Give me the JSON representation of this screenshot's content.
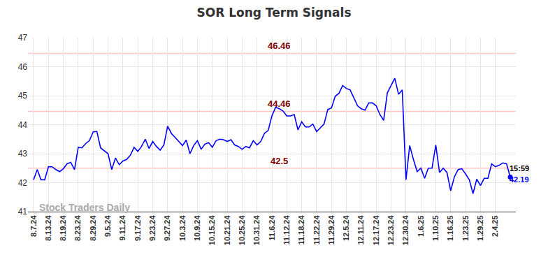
{
  "chart_data": {
    "type": "line",
    "title": "SOR Long Term Signals",
    "color": "#0000ff",
    "grid": true,
    "ylim": [
      41,
      47
    ],
    "yticks": [
      41,
      42,
      43,
      44,
      45,
      46,
      47
    ],
    "categories": [
      "8.7.24",
      null,
      null,
      null,
      "8.13.24",
      null,
      null,
      null,
      "8.19.24",
      null,
      null,
      null,
      "8.23.24",
      null,
      null,
      null,
      "8.29.24",
      null,
      null,
      null,
      "9.5.24",
      null,
      null,
      null,
      "9.11.24",
      null,
      null,
      null,
      "9.17.24",
      null,
      null,
      null,
      "9.23.24",
      null,
      null,
      null,
      "9.27.24",
      null,
      null,
      null,
      "10.3.24",
      null,
      null,
      null,
      "10.9.24",
      null,
      null,
      null,
      "10.15.24",
      null,
      null,
      null,
      "10.21.24",
      null,
      null,
      null,
      "10.25.24",
      null,
      null,
      null,
      "10.31.24",
      null,
      null,
      null,
      "11.6.24",
      null,
      null,
      null,
      "11.12.24",
      null,
      null,
      null,
      "11.18.24",
      null,
      null,
      null,
      "11.22.24",
      null,
      null,
      null,
      "11.29.24",
      null,
      null,
      null,
      "12.5.24",
      null,
      null,
      null,
      "12.11.24",
      null,
      null,
      null,
      "12.17.24",
      null,
      null,
      null,
      "12.23.24",
      null,
      null,
      null,
      "12.30.24",
      null,
      null,
      null,
      "1.6.25",
      null,
      null,
      null,
      "1.10.25",
      null,
      null,
      null,
      "1.16.25",
      null,
      null,
      null,
      "1.23.25",
      null,
      null,
      null,
      "1.29.25",
      null,
      null,
      null,
      "2.4.25",
      null,
      null,
      null,
      null
    ],
    "values": [
      42.1,
      42.45,
      42.1,
      42.1,
      42.55,
      42.55,
      42.45,
      42.38,
      42.48,
      42.65,
      42.7,
      42.45,
      43.22,
      43.2,
      43.35,
      43.45,
      43.75,
      43.77,
      43.2,
      43.1,
      43.0,
      42.45,
      42.85,
      42.62,
      42.75,
      42.8,
      42.95,
      43.22,
      43.08,
      43.25,
      43.5,
      43.18,
      43.42,
      43.25,
      43.12,
      43.3,
      43.95,
      43.7,
      43.55,
      43.42,
      43.28,
      43.47,
      43.0,
      43.28,
      43.45,
      43.15,
      43.33,
      43.38,
      43.22,
      43.45,
      43.5,
      43.48,
      43.42,
      43.48,
      43.3,
      43.25,
      43.15,
      43.25,
      43.2,
      43.45,
      43.3,
      43.42,
      43.7,
      43.8,
      44.3,
      44.6,
      44.55,
      44.47,
      44.3,
      44.3,
      44.35,
      43.82,
      44.1,
      43.92,
      43.92,
      44.02,
      43.76,
      43.9,
      44.02,
      44.52,
      44.58,
      44.98,
      45.08,
      45.35,
      45.25,
      45.2,
      44.92,
      44.65,
      44.55,
      44.5,
      44.75,
      44.75,
      44.65,
      44.35,
      44.15,
      45.1,
      45.35,
      45.6,
      45.05,
      45.2,
      42.1,
      43.28,
      42.8,
      42.38,
      42.5,
      42.15,
      42.5,
      42.5,
      43.3,
      42.35,
      42.5,
      42.35,
      41.72,
      42.2,
      42.45,
      42.48,
      42.3,
      42.1,
      41.62,
      42.12,
      41.9,
      42.15,
      42.15,
      42.65,
      42.55,
      42.6,
      42.68,
      42.65,
      42.19
    ],
    "signals": [
      {
        "value": 46.46,
        "color": "#ffc4c4"
      },
      {
        "value": 44.46,
        "color": "#ffc4c4"
      },
      {
        "value": 42.5,
        "color": "#ffc4c4"
      }
    ],
    "last_time": "15:59",
    "watermark": "Stock Traders Daily"
  }
}
